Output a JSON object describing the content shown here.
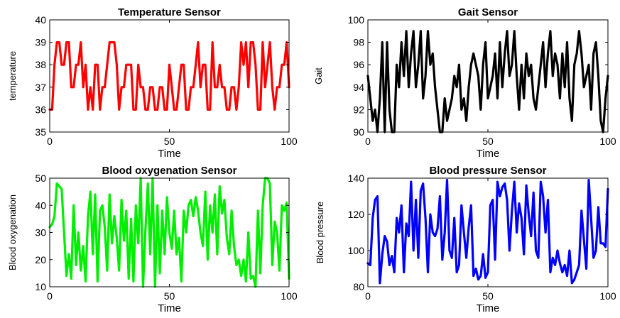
{
  "chart_data": [
    {
      "type": "line",
      "title": "Temperature Sensor",
      "xlabel": "Time",
      "ylabel": "temperature",
      "xlim": [
        0,
        100
      ],
      "ylim": [
        35,
        40
      ],
      "xticks": [
        0,
        50,
        100
      ],
      "yticks": [
        35,
        36,
        37,
        38,
        39,
        40
      ],
      "grid": false,
      "color": "#ff0000",
      "x": [
        0,
        1,
        2,
        3,
        4,
        5,
        6,
        7,
        8,
        9,
        10,
        11,
        12,
        13,
        14,
        15,
        16,
        17,
        18,
        19,
        20,
        21,
        22,
        23,
        24,
        25,
        26,
        27,
        28,
        29,
        30,
        31,
        32,
        33,
        34,
        35,
        36,
        37,
        38,
        39,
        40,
        41,
        42,
        43,
        44,
        45,
        46,
        47,
        48,
        49,
        50,
        51,
        52,
        53,
        54,
        55,
        56,
        57,
        58,
        59,
        60,
        61,
        62,
        63,
        64,
        65,
        66,
        67,
        68,
        69,
        70,
        71,
        72,
        73,
        74,
        75,
        76,
        77,
        78,
        79,
        80,
        81,
        82,
        83,
        84,
        85,
        86,
        87,
        88,
        89,
        90,
        91,
        92,
        93,
        94,
        95,
        96,
        97,
        98,
        99,
        100
      ],
      "values": [
        36,
        36,
        38,
        39,
        39,
        38,
        38,
        39,
        39,
        37,
        37,
        38,
        38,
        39,
        37,
        38,
        36,
        37,
        36,
        38,
        38,
        36,
        37,
        37,
        38,
        39,
        39,
        39,
        38,
        36,
        37,
        37,
        38,
        38,
        38,
        36,
        36,
        38,
        37,
        37,
        36,
        36,
        37,
        37,
        36,
        36,
        37,
        37,
        36,
        36,
        38,
        37,
        36,
        36,
        37,
        38,
        38,
        36,
        36,
        37,
        37,
        38,
        39,
        37,
        38,
        38,
        36,
        36,
        39,
        37,
        37,
        38,
        37,
        37,
        36,
        36,
        37,
        37,
        36,
        37,
        39,
        38,
        39,
        37,
        39,
        39,
        38,
        36,
        36,
        39,
        37,
        38,
        39,
        37,
        36,
        37,
        37,
        38,
        38,
        39,
        37
      ]
    },
    {
      "type": "line",
      "title": "Gait Sensor",
      "xlabel": "Time",
      "ylabel": "Gait",
      "xlim": [
        0,
        100
      ],
      "ylim": [
        90,
        100
      ],
      "xticks": [
        0,
        50,
        100
      ],
      "yticks": [
        90,
        92,
        94,
        96,
        98,
        100
      ],
      "grid": false,
      "color": "#000000",
      "x": [
        0,
        1,
        2,
        3,
        4,
        5,
        6,
        7,
        8,
        9,
        10,
        11,
        12,
        13,
        14,
        15,
        16,
        17,
        18,
        19,
        20,
        21,
        22,
        23,
        24,
        25,
        26,
        27,
        28,
        29,
        30,
        31,
        32,
        33,
        34,
        35,
        36,
        37,
        38,
        39,
        40,
        41,
        42,
        43,
        44,
        45,
        46,
        47,
        48,
        49,
        50,
        51,
        52,
        53,
        54,
        55,
        56,
        57,
        58,
        59,
        60,
        61,
        62,
        63,
        64,
        65,
        66,
        67,
        68,
        69,
        70,
        71,
        72,
        73,
        74,
        75,
        76,
        77,
        78,
        79,
        80,
        81,
        82,
        83,
        84,
        85,
        86,
        87,
        88,
        89,
        90,
        91,
        92,
        93,
        94,
        95,
        96,
        97,
        98,
        99,
        100
      ],
      "values": [
        95,
        93,
        91,
        92,
        90,
        93,
        98,
        90,
        98,
        92,
        90,
        90,
        96,
        94,
        98,
        95,
        99,
        94,
        97,
        99,
        94,
        96,
        99,
        93,
        95,
        99,
        96,
        97,
        94,
        92,
        90,
        90,
        93,
        91,
        92,
        93,
        95,
        94,
        96,
        92,
        93,
        91,
        94,
        96,
        97,
        96,
        95,
        92,
        96,
        98,
        93,
        94,
        95,
        97,
        93,
        98,
        94,
        97,
        99,
        95,
        96,
        99,
        95,
        92,
        96,
        93,
        97,
        95,
        96,
        93,
        92,
        94,
        96,
        98,
        94,
        97,
        99,
        95,
        97,
        96,
        93,
        97,
        94,
        98,
        93,
        91,
        96,
        97,
        99,
        97,
        94,
        95,
        96,
        92,
        97,
        98,
        95,
        91,
        90,
        93,
        95
      ]
    },
    {
      "type": "line",
      "title": "Blood oxygenation Sensor",
      "xlabel": "Time",
      "ylabel": "Blood oxygenation",
      "xlim": [
        0,
        100
      ],
      "ylim": [
        10,
        50
      ],
      "xticks": [
        0,
        50,
        100
      ],
      "yticks": [
        10,
        20,
        30,
        40,
        50
      ],
      "grid": false,
      "color": "#00ee00",
      "x": [
        0,
        1,
        2,
        3,
        4,
        5,
        6,
        7,
        8,
        9,
        10,
        11,
        12,
        13,
        14,
        15,
        16,
        17,
        18,
        19,
        20,
        21,
        22,
        23,
        24,
        25,
        26,
        27,
        28,
        29,
        30,
        31,
        32,
        33,
        34,
        35,
        36,
        37,
        38,
        39,
        40,
        41,
        42,
        43,
        44,
        45,
        46,
        47,
        48,
        49,
        50,
        51,
        52,
        53,
        54,
        55,
        56,
        57,
        58,
        59,
        60,
        61,
        62,
        63,
        64,
        65,
        66,
        67,
        68,
        69,
        70,
        71,
        72,
        73,
        74,
        75,
        76,
        77,
        78,
        79,
        80,
        81,
        82,
        83,
        84,
        85,
        86,
        87,
        88,
        89,
        90,
        91,
        92,
        93,
        94,
        95,
        96,
        97,
        98,
        99,
        100
      ],
      "values": [
        32,
        33,
        36,
        48,
        47,
        46,
        30,
        14,
        22,
        13,
        40,
        18,
        30,
        16,
        25,
        12,
        36,
        45,
        22,
        44,
        12,
        38,
        40,
        32,
        16,
        44,
        26,
        36,
        28,
        16,
        42,
        27,
        38,
        13,
        35,
        12,
        40,
        26,
        50,
        10,
        31,
        48,
        22,
        50,
        10,
        40,
        15,
        38,
        22,
        43,
        30,
        24,
        38,
        22,
        28,
        12,
        38,
        30,
        40,
        42,
        36,
        43,
        38,
        30,
        25,
        45,
        20,
        40,
        30,
        44,
        22,
        47,
        37,
        42,
        28,
        22,
        38,
        25,
        18,
        20,
        14,
        20,
        12,
        30,
        13,
        14,
        10,
        38,
        15,
        40,
        50,
        50,
        48,
        18,
        34,
        30,
        16,
        40,
        38,
        41,
        13
      ]
    },
    {
      "type": "line",
      "title": "Blood pressure Sensor",
      "xlabel": "Time",
      "ylabel": "Blood pressure",
      "xlim": [
        0,
        100
      ],
      "ylim": [
        80,
        140
      ],
      "xticks": [
        0,
        50,
        100
      ],
      "yticks": [
        80,
        100,
        120,
        140
      ],
      "grid": false,
      "color": "#0000ff",
      "x": [
        0,
        1,
        2,
        3,
        4,
        5,
        6,
        7,
        8,
        9,
        10,
        11,
        12,
        13,
        14,
        15,
        16,
        17,
        18,
        19,
        20,
        21,
        22,
        23,
        24,
        25,
        26,
        27,
        28,
        29,
        30,
        31,
        32,
        33,
        34,
        35,
        36,
        37,
        38,
        39,
        40,
        41,
        42,
        43,
        44,
        45,
        46,
        47,
        48,
        49,
        50,
        51,
        52,
        53,
        54,
        55,
        56,
        57,
        58,
        59,
        60,
        61,
        62,
        63,
        64,
        65,
        66,
        67,
        68,
        69,
        70,
        71,
        72,
        73,
        74,
        75,
        76,
        77,
        78,
        79,
        80,
        81,
        82,
        83,
        84,
        85,
        86,
        87,
        88,
        89,
        90,
        91,
        92,
        93,
        94,
        95,
        96,
        97,
        98,
        99,
        100
      ],
      "values": [
        93,
        92,
        118,
        128,
        130,
        82,
        98,
        108,
        105,
        92,
        97,
        88,
        118,
        110,
        125,
        88,
        115,
        108,
        138,
        100,
        128,
        96,
        133,
        137,
        118,
        88,
        120,
        110,
        108,
        112,
        130,
        95,
        110,
        139,
        100,
        96,
        118,
        88,
        92,
        125,
        110,
        96,
        113,
        125,
        86,
        90,
        84,
        86,
        98,
        85,
        88,
        125,
        128,
        95,
        138,
        130,
        135,
        137,
        128,
        100,
        122,
        138,
        110,
        126,
        118,
        98,
        136,
        120,
        108,
        132,
        100,
        96,
        138,
        130,
        110,
        128,
        88,
        96,
        92,
        100,
        93,
        88,
        92,
        86,
        100,
        82,
        84,
        88,
        92,
        122,
        106,
        90,
        139,
        118,
        96,
        100,
        124,
        104,
        104,
        102,
        134
      ]
    }
  ]
}
